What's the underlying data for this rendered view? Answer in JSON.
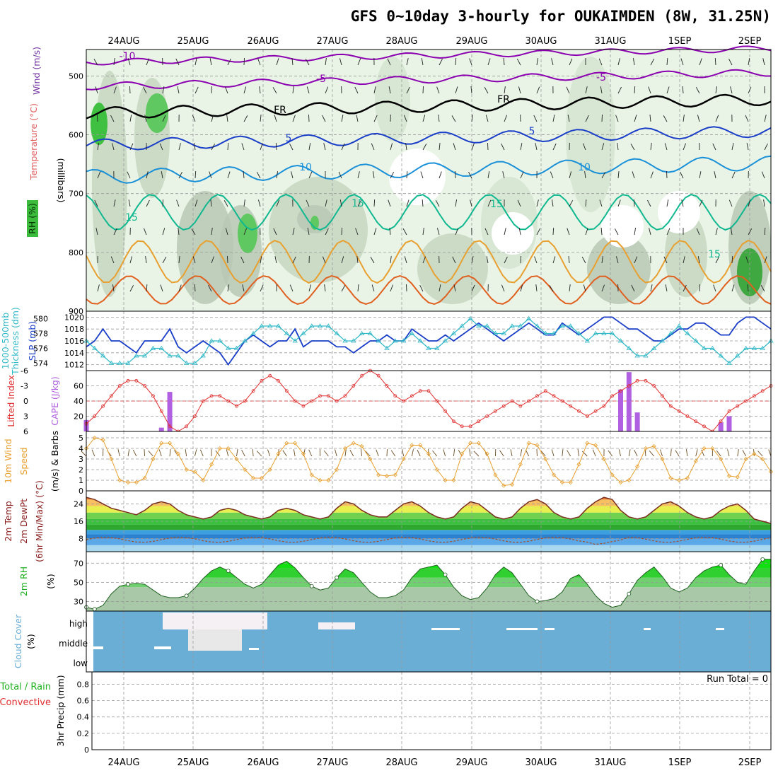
{
  "title": "GFS 0~10day 3-hourly for OUKAIMDEN (8W, 31.25N)",
  "dates": [
    "24AUG",
    "25AUG",
    "26AUG",
    "27AUG",
    "28AUG",
    "29AUG",
    "30AUG",
    "31AUG",
    "1SEP",
    "2SEP"
  ],
  "colors": {
    "rh": "#3dbb3d",
    "temp_label": "#e06060",
    "wind_label": "#7030a0",
    "slp": "#1a3ec8",
    "thickness": "#30b8c8",
    "lifted": "#e03030",
    "cape": "#b060e0",
    "wind10": "#e8a030",
    "rh2m": "#20b020",
    "cloud": "#6aaed6",
    "precip_rain": "#20b020",
    "precip_conv": "#e03030"
  },
  "panels": {
    "upper": {
      "ylabel_wind": "Wind (m/s)",
      "ylabel_temp": "Temperature (°C)",
      "ylabel_rh": "RH (%)",
      "ylabel_unit": "(millibars)",
      "ticks": [
        "500",
        "600",
        "700",
        "800",
        "900"
      ],
      "labels": [
        {
          "text": "-10",
          "color": "#8b00b0"
        },
        {
          "text": "-5",
          "color": "#8b00b0"
        },
        {
          "text": "-5",
          "color": "#8b00b0"
        },
        {
          "text": "FR",
          "color": "#000000"
        },
        {
          "text": "FR",
          "color": "#000000"
        },
        {
          "text": "5",
          "color": "#1a3ec8"
        },
        {
          "text": "5",
          "color": "#1a3ec8"
        },
        {
          "text": "10",
          "color": "#1a90d8"
        },
        {
          "text": "10",
          "color": "#1a90d8"
        },
        {
          "text": "15",
          "color": "#10b890"
        },
        {
          "text": "15",
          "color": "#10b890"
        },
        {
          "text": "15",
          "color": "#10b890"
        },
        {
          "text": "15",
          "color": "#10b890"
        }
      ]
    },
    "slp": {
      "label1": "1000-500mb",
      "label2": "Thickness (dm)",
      "label3": "SLP (mb)",
      "ticks_left": [
        "580",
        "578",
        "576",
        "574"
      ],
      "ticks_right": [
        "1020",
        "1018",
        "1016",
        "1014",
        "1012"
      ]
    },
    "cape": {
      "label1": "Lifted Index",
      "label2": "CAPE (J/kg)",
      "ticks_left": [
        "-6",
        "-3",
        "0",
        "3",
        "6"
      ],
      "ticks_right": [
        "60",
        "40",
        "20"
      ]
    },
    "wind10": {
      "label1": "10m Wind",
      "label2": "Speed",
      "label3": "(m/s) & Barbs",
      "ticks": [
        "5",
        "4",
        "3",
        "2",
        "1",
        "0"
      ]
    },
    "temp2m": {
      "label1": "2m Temp",
      "label2": "2m DewPt",
      "label3": "(6hr Min/Max) (°C)",
      "ticks": [
        "24",
        "16",
        "8"
      ]
    },
    "rh2m": {
      "label1": "2m RH",
      "label2": "(%)",
      "ticks": [
        "70",
        "50",
        "30"
      ]
    },
    "cloud": {
      "label1": "Cloud Cover",
      "label2": "(%)",
      "levels": [
        "high",
        "middle",
        "low"
      ]
    },
    "precip": {
      "label1": "Total / Rain",
      "label2": "Convective",
      "label3": "3hr Precip (mm)",
      "ticks": [
        "0.8",
        "0.6",
        "0.4",
        "0.2",
        "0"
      ],
      "run_total": "Run Total = 0"
    }
  },
  "chart_data": [
    {
      "type": "line",
      "panel": "slp",
      "series": [
        {
          "values": [
            1015,
            1016,
            1018,
            1016,
            1016,
            1015,
            1014,
            1016,
            1016,
            1016,
            1018,
            1015,
            1014,
            1015,
            1016,
            1015,
            1014,
            1012,
            1014,
            1016,
            1017,
            1016,
            1015,
            1016,
            1016,
            1018,
            1015,
            1016,
            1016,
            1016,
            1015,
            1015,
            1014,
            1015,
            1016,
            1016,
            1017,
            1016,
            1016,
            1018,
            1017,
            1016,
            1016,
            1017,
            1016,
            1017,
            1018,
            1019,
            1018,
            1017,
            1016,
            1017,
            1018,
            1019,
            1018,
            1017,
            1017,
            1019,
            1018,
            1017,
            1018,
            1019,
            1020,
            1020,
            1019,
            1018,
            1018,
            1017,
            1016,
            1016,
            1017,
            1018,
            1018,
            1019,
            1019,
            1018,
            1017,
            1017,
            1019,
            1020,
            1020,
            1019,
            1018
          ]
        },
        {
          "values": [
            577,
            576,
            575,
            574,
            574,
            574,
            575,
            575,
            576,
            576,
            575,
            575,
            574,
            574,
            575,
            577,
            577,
            576,
            576,
            577,
            578,
            579,
            579,
            579,
            578,
            577,
            578,
            579,
            579,
            579,
            578,
            577,
            577,
            578,
            578,
            577,
            576,
            577,
            577,
            578,
            577,
            576,
            576,
            577,
            578,
            579,
            580,
            579,
            579,
            578,
            578,
            579,
            579,
            580,
            579,
            578,
            578,
            579,
            579,
            578,
            577,
            578,
            578,
            578,
            577,
            576,
            575,
            575,
            576,
            577,
            578,
            579,
            578,
            577,
            576,
            576,
            575,
            574,
            575,
            576,
            576,
            576,
            577
          ]
        }
      ]
    },
    {
      "type": "line",
      "panel": "lifted_index",
      "values": [
        4.5,
        3,
        1,
        -1,
        -3,
        -4,
        -4,
        -3,
        -1,
        2,
        5,
        6,
        5,
        3,
        0,
        -1,
        -1,
        0,
        1,
        0,
        -2,
        -4,
        -5,
        -4,
        -2,
        0,
        1,
        0,
        -1,
        -1,
        0,
        -1,
        -3,
        -5,
        -6,
        -5,
        -3,
        -1,
        0,
        -1,
        -2,
        -2,
        0,
        2,
        4,
        5,
        5,
        4,
        3,
        2,
        1,
        0,
        1,
        0,
        -1,
        -2,
        -1,
        0,
        1,
        2,
        3,
        2,
        1,
        -1,
        -2,
        -3,
        -4,
        -4,
        -3,
        -1,
        1,
        2,
        3,
        4,
        5,
        6,
        4,
        2,
        1,
        0,
        -1,
        -2,
        -3
      ]
    },
    {
      "type": "bar",
      "panel": "cape",
      "values": [
        15,
        0,
        0,
        0,
        0,
        0,
        0,
        0,
        0,
        5,
        52,
        0,
        0,
        0,
        0,
        0,
        0,
        0,
        0,
        0,
        0,
        0,
        0,
        0,
        0,
        0,
        0,
        0,
        0,
        0,
        0,
        0,
        0,
        0,
        0,
        0,
        0,
        0,
        0,
        0,
        0,
        0,
        0,
        0,
        0,
        0,
        0,
        0,
        0,
        0,
        0,
        0,
        0,
        0,
        0,
        0,
        0,
        0,
        0,
        0,
        0,
        0,
        0,
        0,
        55,
        78,
        25,
        0,
        0,
        0,
        0,
        0,
        0,
        0,
        0,
        0,
        12,
        20,
        0,
        0,
        0,
        0,
        0
      ]
    },
    {
      "type": "line",
      "panel": "wind10",
      "values": [
        4,
        5,
        4.8,
        3,
        1,
        0.8,
        0.8,
        1.2,
        3,
        4.5,
        4.5,
        3.5,
        2,
        1.8,
        1,
        2.5,
        4,
        4,
        3,
        2,
        1.2,
        1.2,
        2,
        3.5,
        4.5,
        4.5,
        3.5,
        1.5,
        1,
        1,
        2,
        4,
        4.5,
        4.2,
        3,
        1.5,
        1.4,
        1.5,
        3,
        4.3,
        4.3,
        3.5,
        2,
        1,
        1,
        3.5,
        4.5,
        4.5,
        3.5,
        1.5,
        0.5,
        0.6,
        2.5,
        4.5,
        4.3,
        3,
        1.5,
        0.8,
        0.8,
        2.5,
        4.5,
        4.3,
        3,
        1.5,
        0.8,
        1,
        2.3,
        4,
        4.2,
        3,
        1.2,
        1,
        1.2,
        2.8,
        4,
        4,
        3,
        1.4,
        1.3,
        3,
        3.5,
        3,
        1.8
      ]
    },
    {
      "type": "area",
      "panel": "temp2m",
      "values": [
        27,
        26,
        24,
        22,
        21,
        20,
        19,
        21,
        24,
        25,
        24,
        21,
        19,
        18,
        17,
        18,
        21,
        22,
        21,
        19,
        18,
        17,
        18,
        21,
        22,
        21,
        19,
        18,
        17,
        18,
        22,
        25,
        24,
        21,
        19,
        18,
        18,
        21,
        24,
        25,
        23,
        20,
        18,
        17,
        18,
        22,
        25,
        24,
        21,
        18,
        17,
        18,
        22,
        25,
        26,
        24,
        20,
        18,
        17,
        18,
        22,
        25,
        27,
        26,
        21,
        18,
        17,
        18,
        21,
        24,
        25,
        23,
        20,
        18,
        17,
        18,
        21,
        23,
        24,
        21,
        17,
        16,
        15
      ]
    },
    {
      "type": "area",
      "panel": "rh2m",
      "values": [
        24,
        22,
        26,
        38,
        46,
        48,
        49,
        48,
        42,
        36,
        34,
        34,
        36,
        44,
        54,
        62,
        66,
        62,
        55,
        48,
        44,
        48,
        58,
        68,
        72,
        65,
        55,
        46,
        42,
        44,
        55,
        64,
        60,
        50,
        40,
        34,
        34,
        36,
        42,
        55,
        64,
        66,
        68,
        58,
        45,
        36,
        32,
        34,
        44,
        58,
        66,
        60,
        48,
        36,
        30,
        31,
        33,
        40,
        54,
        58,
        48,
        36,
        28,
        24,
        26,
        38,
        52,
        60,
        66,
        56,
        44,
        40,
        44,
        55,
        62,
        66,
        68,
        58,
        50,
        48,
        62,
        74,
        74
      ]
    }
  ]
}
